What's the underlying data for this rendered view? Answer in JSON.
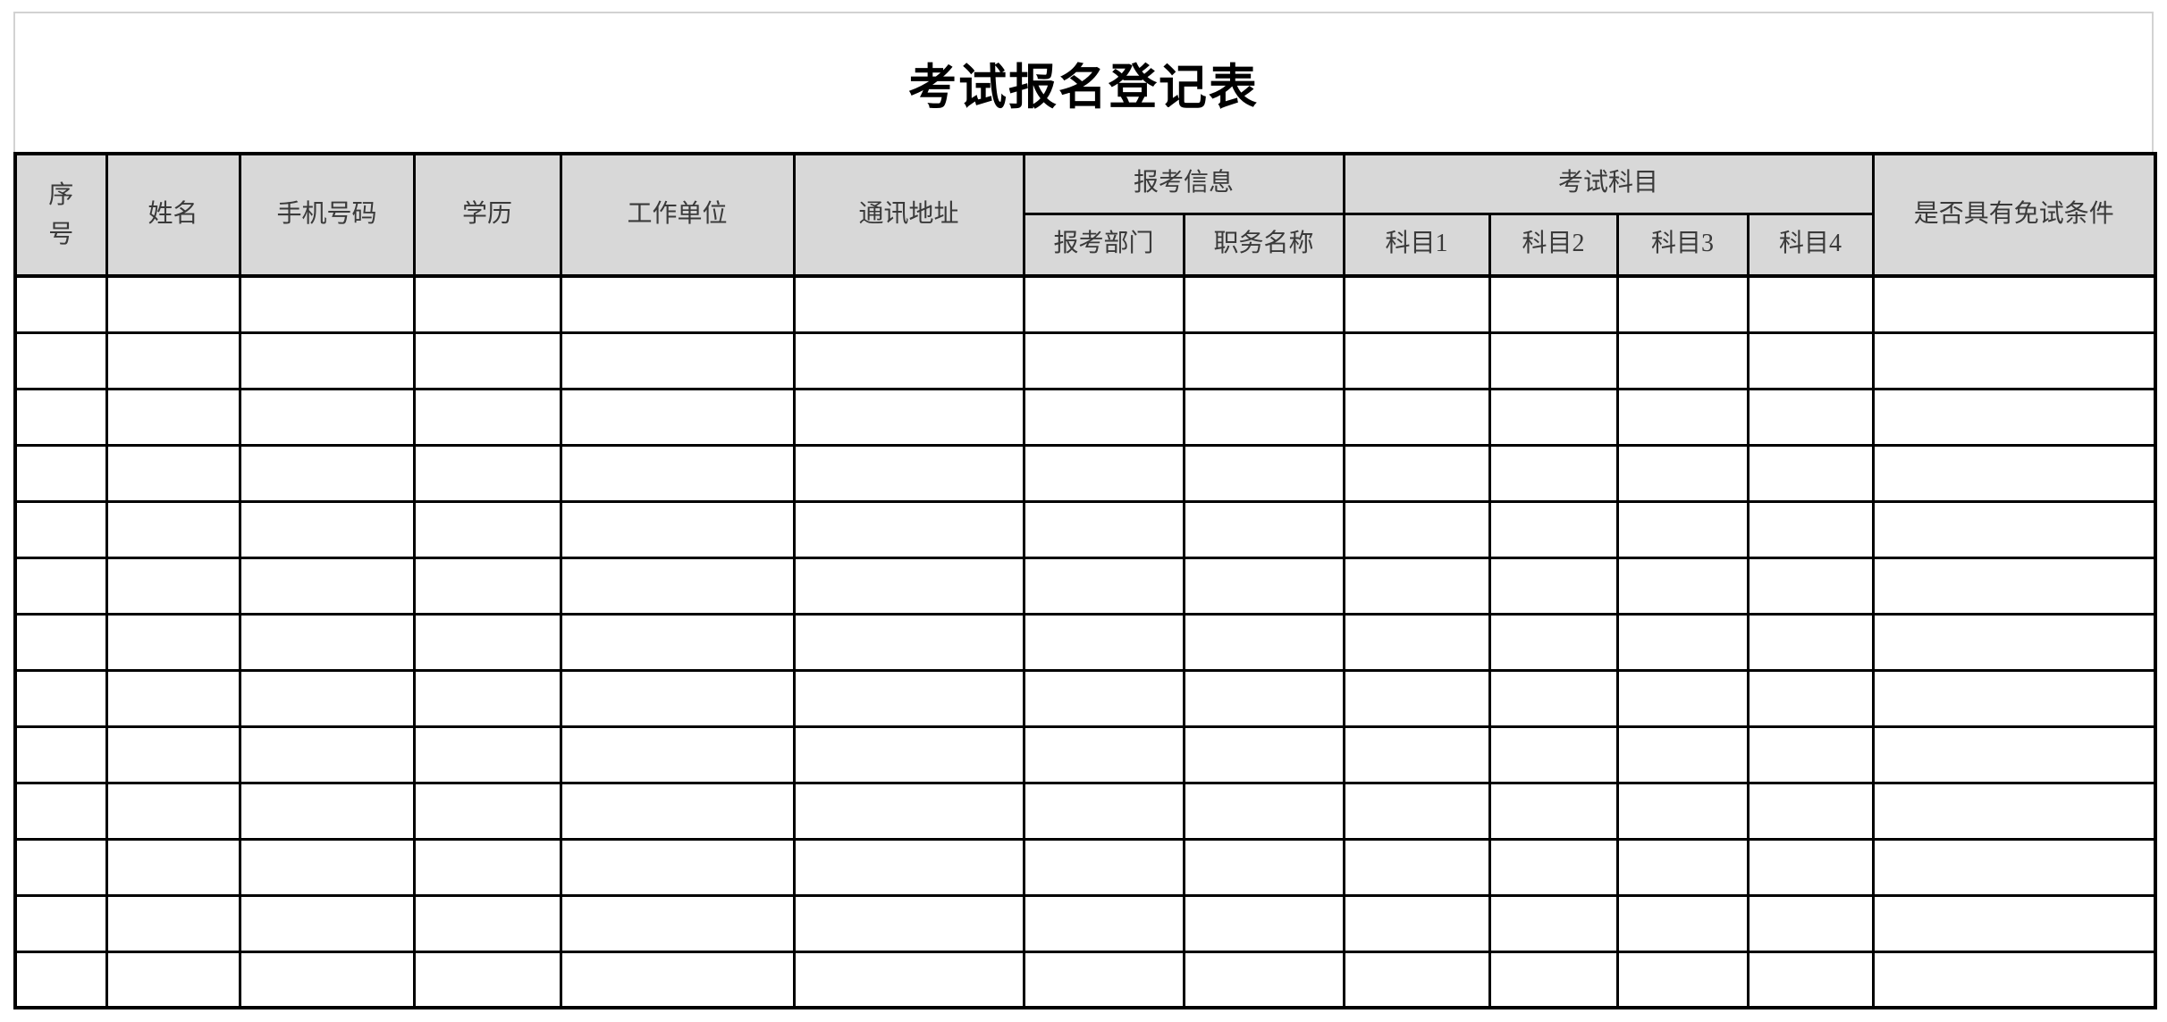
{
  "page": {
    "title": "考试报名登记表"
  },
  "table": {
    "header": {
      "serial": "序号",
      "name": "姓名",
      "phone": "手机号码",
      "education": "学历",
      "work_unit": "工作单位",
      "address": "通讯地址",
      "application_group": "报考信息",
      "department": "报考部门",
      "position": "职务名称",
      "subjects_group": "考试科目",
      "subject1": "科目1",
      "subject2": "科目2",
      "subject3": "科目3",
      "subject4": "科目4",
      "exemption": "是否具有免试条件"
    },
    "body": {
      "rows": 13,
      "cols": 13
    },
    "colors": {
      "header_bg": "#d8d8d8",
      "grid_border": "#000000",
      "page_outline": "#d2d2d2",
      "header_text": "#3a3a3a",
      "title_text": "#000000"
    }
  }
}
